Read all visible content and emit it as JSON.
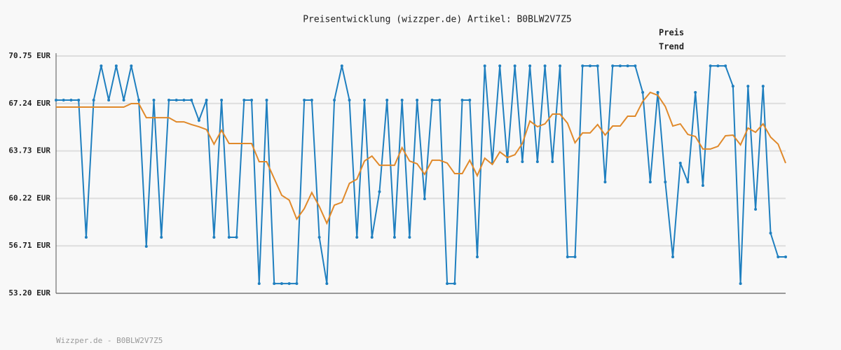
{
  "chart_data": {
    "type": "line",
    "title": "Preisentwicklung (wizzper.de) Artikel: B0BLW2V7Z5",
    "footer": "Wizzper.de - B0BLW2V7Z5",
    "ylim": [
      53.2,
      70.75
    ],
    "yticks": [
      {
        "value": 53.2,
        "label": "53.20 EUR"
      },
      {
        "value": 56.71,
        "label": "56.71 EUR"
      },
      {
        "value": 60.22,
        "label": "60.22 EUR"
      },
      {
        "value": 63.73,
        "label": "63.73 EUR"
      },
      {
        "value": 67.24,
        "label": "67.24 EUR"
      },
      {
        "value": 70.75,
        "label": "70.75 EUR"
      }
    ],
    "grid": true,
    "legend": "top-right",
    "series": [
      {
        "name": "Preis",
        "color": "#1f7fbf",
        "values": [
          67.49,
          67.49,
          67.49,
          67.49,
          57.34,
          67.49,
          70.02,
          67.49,
          70.02,
          67.49,
          70.02,
          67.49,
          56.67,
          67.49,
          57.34,
          67.49,
          67.49,
          67.49,
          67.49,
          65.99,
          67.49,
          57.34,
          67.49,
          57.34,
          57.34,
          67.49,
          67.49,
          53.92,
          67.49,
          53.92,
          53.92,
          53.92,
          53.92,
          67.49,
          67.49,
          57.34,
          53.92,
          67.49,
          70.02,
          67.49,
          57.34,
          67.49,
          57.34,
          60.71,
          67.49,
          57.34,
          67.49,
          57.34,
          67.49,
          60.19,
          67.49,
          67.49,
          53.92,
          53.92,
          67.49,
          67.49,
          55.89,
          70.02,
          62.83,
          70.02,
          62.93,
          70.02,
          62.93,
          70.02,
          62.93,
          70.02,
          62.93,
          70.02,
          55.89,
          55.89,
          70.02,
          70.02,
          70.02,
          61.43,
          70.02,
          70.02,
          70.02,
          70.02,
          68.06,
          61.43,
          68.06,
          61.43,
          55.89,
          62.83,
          61.43,
          68.06,
          61.17,
          70.02,
          70.02,
          70.02,
          68.52,
          53.92,
          68.52,
          59.41,
          68.52,
          57.65,
          55.89,
          55.89
        ]
      },
      {
        "name": "Trend",
        "color": "#e0892a",
        "values": [
          66.97,
          66.97,
          66.97,
          66.97,
          66.97,
          66.97,
          66.97,
          66.97,
          66.97,
          66.97,
          67.23,
          67.23,
          66.19,
          66.19,
          66.19,
          66.19,
          65.88,
          65.88,
          65.68,
          65.52,
          65.31,
          64.23,
          65.26,
          64.28,
          64.28,
          64.28,
          64.28,
          62.93,
          62.93,
          61.69,
          60.45,
          60.09,
          58.69,
          59.46,
          60.65,
          59.62,
          58.38,
          59.72,
          59.93,
          61.33,
          61.64,
          62.98,
          63.35,
          62.67,
          62.67,
          62.67,
          63.97,
          62.98,
          62.78,
          62.0,
          63.04,
          63.04,
          62.83,
          62.05,
          62.05,
          63.04,
          61.9,
          63.19,
          62.73,
          63.66,
          63.24,
          63.45,
          64.28,
          65.94,
          65.52,
          65.73,
          66.45,
          66.45,
          65.78,
          64.33,
          65.06,
          65.06,
          65.68,
          64.9,
          65.57,
          65.57,
          66.3,
          66.3,
          67.39,
          68.06,
          67.85,
          67.02,
          65.57,
          65.73,
          64.95,
          64.8,
          63.87,
          63.87,
          64.07,
          64.85,
          64.9,
          64.18,
          65.42,
          65.11,
          65.73,
          64.75,
          64.23,
          62.83
        ]
      }
    ]
  }
}
